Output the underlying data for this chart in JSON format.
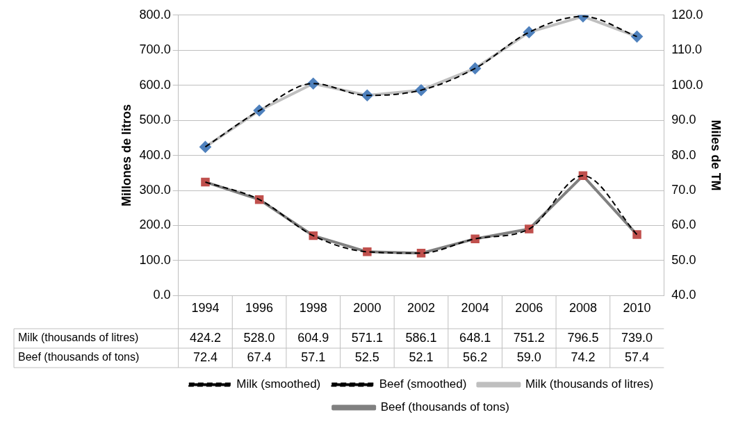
{
  "chart_data": {
    "type": "line",
    "categories": [
      "1994",
      "1996",
      "1998",
      "2000",
      "2002",
      "2004",
      "2006",
      "2008",
      "2010"
    ],
    "ylabel": "Millones de litros",
    "y2label": "Miles de TM",
    "ylim": [
      0,
      800
    ],
    "yticks": [
      {
        "value": 0,
        "label": "0.0"
      },
      {
        "value": 100,
        "label": "100.0"
      },
      {
        "value": 200,
        "label": "200.0"
      },
      {
        "value": 300,
        "label": "300.0"
      },
      {
        "value": 400,
        "label": "400.0"
      },
      {
        "value": 500,
        "label": "500.0"
      },
      {
        "value": 600,
        "label": "600.0"
      },
      {
        "value": 700,
        "label": "700.0"
      },
      {
        "value": 800,
        "label": "800.0"
      }
    ],
    "y2lim": [
      40,
      120
    ],
    "y2ticks": [
      {
        "value": 40,
        "label": "40.0"
      },
      {
        "value": 50,
        "label": "50.0"
      },
      {
        "value": 60,
        "label": "60.0"
      },
      {
        "value": 70,
        "label": "70.0"
      },
      {
        "value": 80,
        "label": "80.0"
      },
      {
        "value": 90,
        "label": "90.0"
      },
      {
        "value": 100,
        "label": "100.0"
      },
      {
        "value": 110,
        "label": "110.0"
      },
      {
        "value": 120,
        "label": "120.0"
      }
    ],
    "grid": "y",
    "legend": "bottom",
    "series": [
      {
        "name": "Milk (thousands of litres)",
        "color": "#bfbfbf",
        "colors": [
          "#4f81bd",
          "#4f81bd",
          "#4f81bd",
          "#4f81bd",
          "#4f81bd",
          "#4f81bd",
          "#4f81bd",
          "#4f81bd",
          "#4f81bd"
        ],
        "marker": "diamond",
        "line_style": "solid",
        "values": [
          424.2,
          528.0,
          604.9,
          571.1,
          586.1,
          648.1,
          751.2,
          796.5,
          739.0
        ],
        "value_labels": [
          "424.2",
          "528.0",
          "604.9",
          "571.1",
          "586.1",
          "648.1",
          "751.2",
          "796.5",
          "739.0"
        ]
      },
      {
        "name": "Beef (thousands of tons)",
        "color": "#808080",
        "colors": [
          "#c0504d",
          "#c0504d",
          "#c0504d",
          "#c0504d",
          "#c0504d",
          "#c0504d",
          "#c0504d",
          "#c0504d",
          "#c0504d"
        ],
        "marker": "square",
        "line_style": "solid",
        "axis": "y2",
        "values": [
          72.4,
          67.4,
          57.1,
          52.5,
          52.1,
          56.2,
          59.0,
          74.2,
          57.4
        ],
        "value_labels": [
          "72.4",
          "67.4",
          "57.1",
          "52.5",
          "52.1",
          "56.2",
          "59.0",
          "74.2",
          "57.4"
        ]
      },
      {
        "name": "Milk (smoothed)",
        "color": "#000000",
        "marker": "none",
        "line_style": "dashed",
        "values": [
          424.2,
          528.0,
          604.9,
          571.1,
          586.1,
          648.1,
          751.2,
          796.5,
          739.0
        ]
      },
      {
        "name": "Beef (smoothed)",
        "color": "#000000",
        "marker": "none",
        "line_style": "dashed",
        "axis": "y2",
        "values": [
          72.4,
          67.4,
          57.1,
          52.5,
          52.1,
          56.2,
          59.0,
          74.2,
          57.4
        ]
      }
    ]
  }
}
